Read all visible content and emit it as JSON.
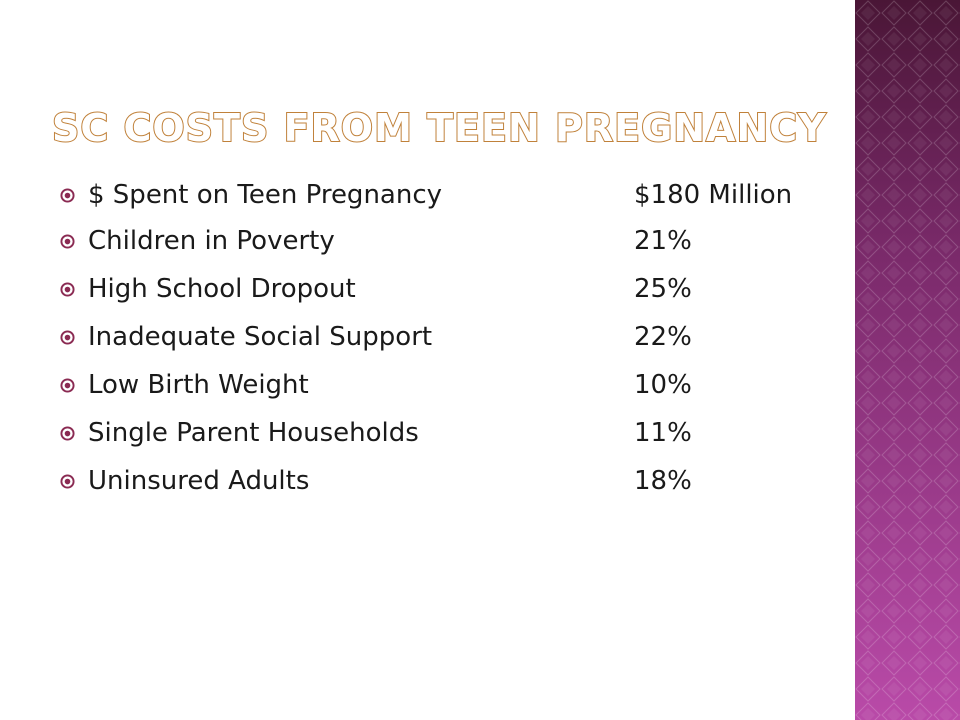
{
  "slide": {
    "title": "SC Costs from Teen Pregnancy",
    "items": [
      {
        "label": "$ Spent on Teen Pregnancy",
        "value": "$180 Million"
      },
      {
        "label": "Children in Poverty",
        "value": "21%"
      },
      {
        "label": "High School Dropout",
        "value": "25%"
      },
      {
        "label": "Inadequate Social Support",
        "value": "22%"
      },
      {
        "label": "Low Birth Weight",
        "value": "10%"
      },
      {
        "label": "Single Parent Households",
        "value": "11%"
      },
      {
        "label": "Uninsured Adults",
        "value": "18%"
      }
    ]
  },
  "colors": {
    "title_outline": "#c0813a",
    "bullet": "#8a2a52",
    "band_top": "#4a1636",
    "band_bottom": "#b94aa8"
  },
  "icons": {
    "bullet": "circled-target-icon"
  }
}
